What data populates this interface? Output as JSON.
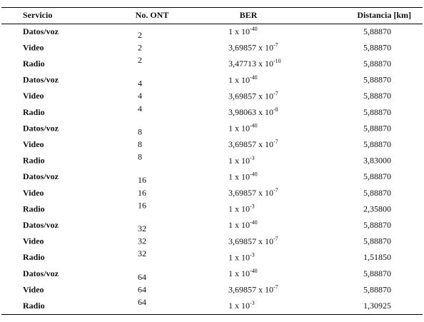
{
  "table": {
    "header": [
      "Servicio",
      "No. ONT",
      "BER",
      "Distancia [km]"
    ],
    "rows": [
      [
        "Datos/voz",
        "2",
        {
          "base": "1 x 10",
          "exp": "-40"
        },
        "5,88870"
      ],
      [
        "Video",
        "2",
        {
          "base": "3,69857 x 10",
          "exp": "-7"
        },
        "5,88870"
      ],
      [
        "Radio",
        "2",
        {
          "base": "3,47713 x 10",
          "exp": "-10"
        },
        "5,88870"
      ],
      [
        "Datos/voz",
        "4",
        {
          "base": "1 x 10",
          "exp": "-40"
        },
        "5,88870"
      ],
      [
        "Video",
        "4",
        {
          "base": "3,69857 x 10",
          "exp": "-7"
        },
        "5,88870"
      ],
      [
        "Radio",
        "4",
        {
          "base": "3,98063 x 10",
          "exp": "-8"
        },
        "5,88870"
      ],
      [
        "Datos/voz",
        "8",
        {
          "base": "1 x 10",
          "exp": "-40"
        },
        "5,88870"
      ],
      [
        "Video",
        "8",
        {
          "base": "3,69857 x 10",
          "exp": "-7"
        },
        "5,88870"
      ],
      [
        "Radio",
        "8",
        {
          "base": "1 x 10",
          "exp": "-3"
        },
        "3,83000"
      ],
      [
        "Datos/voz",
        "16",
        {
          "base": "1 x 10",
          "exp": "-40"
        },
        "5,88870"
      ],
      [
        "Video",
        "16",
        {
          "base": "3,69857 x 10",
          "exp": "-7"
        },
        "5,88870"
      ],
      [
        "Radio",
        "16",
        {
          "base": "1 x 10",
          "exp": "-3"
        },
        "2,35800"
      ],
      [
        "Datos/voz",
        "32",
        {
          "base": "1 x 10",
          "exp": "-40"
        },
        "5,88870"
      ],
      [
        "Video",
        "32",
        {
          "base": "3,69857 x 10",
          "exp": "-7"
        },
        "5,88870"
      ],
      [
        "Radio",
        "32",
        {
          "base": "1 x 10",
          "exp": "-3"
        },
        "1,51850"
      ],
      [
        "Datos/voz",
        "64",
        {
          "base": "1 x 10",
          "exp": "-40"
        },
        "5,88870"
      ],
      [
        "Video",
        "64",
        {
          "base": "3,69857 x 10",
          "exp": "-7"
        },
        "5,88870"
      ],
      [
        "Radio",
        "64",
        {
          "base": "1 x 10",
          "exp": "-3"
        },
        "1,30925"
      ]
    ]
  }
}
